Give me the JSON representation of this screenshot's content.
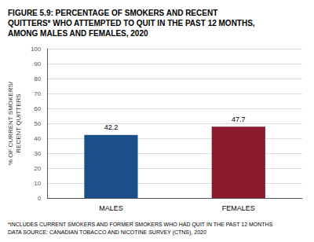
{
  "chart_data": {
    "type": "bar",
    "title": "FIGURE 5.9: PERCENTAGE OF SMOKERS AND RECENT\nQUITTERS* WHO ATTEMPTED TO QUIT IN THE PAST 12 MONTHS,\nAMONG MALES AND FEMALES, 2020",
    "categories": [
      "MALES",
      "FEMALES"
    ],
    "values": [
      42.2,
      47.7
    ],
    "colors": [
      "#1a4f8a",
      "#8b1a2e"
    ],
    "ylabel": "% OF CURRENT SMOKERS/\nRECENT QUITTERS",
    "ylim": [
      0,
      100
    ],
    "yticks": [
      0,
      10,
      20,
      30,
      40,
      50,
      60,
      70,
      80,
      90,
      100
    ],
    "grid": true,
    "data_labels": true,
    "annotations": [
      "*INCLUDES CURRENT SMOKERS AND FORMER SMOKERS WHO HAD QUIT IN THE PAST 12 MONTHS",
      "DATA SOURCE: CANADIAN TOBACCO AND NICOTINE SURVEY (CTNS), 2020"
    ]
  }
}
